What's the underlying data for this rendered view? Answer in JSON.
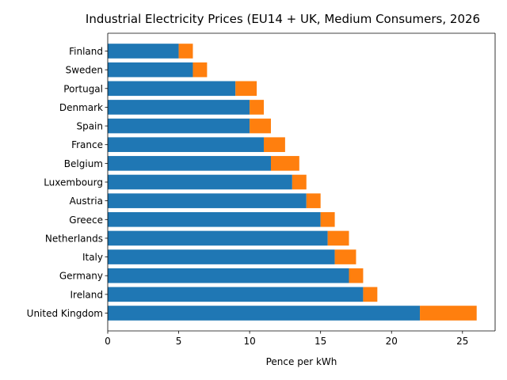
{
  "chart_data": {
    "type": "bar",
    "orientation": "horizontal",
    "stacked": true,
    "title": "Industrial Electricity Prices (EU14 + UK, Medium Consumers, 2026",
    "xlabel": "Pence per kWh",
    "ylabel": "",
    "xlim": [
      0,
      27.3
    ],
    "xticks": [
      0,
      5,
      10,
      15,
      20,
      25
    ],
    "grid": false,
    "legend": "none",
    "categories": [
      "Finland",
      "Sweden",
      "Portugal",
      "Denmark",
      "Spain",
      "France",
      "Belgium",
      "Luxembourg",
      "Austria",
      "Greece",
      "Netherlands",
      "Italy",
      "Germany",
      "Ireland",
      "United Kingdom"
    ],
    "series": [
      {
        "color": "#1f77b4",
        "values": [
          5,
          6,
          9,
          10,
          10,
          11,
          11.5,
          13,
          14,
          15,
          15.5,
          16,
          17,
          18,
          22
        ]
      },
      {
        "color": "#ff7f0e",
        "values": [
          1,
          1,
          1.5,
          1,
          1.5,
          1.5,
          2,
          1,
          1,
          1,
          1.5,
          1.5,
          1,
          1,
          4
        ]
      }
    ]
  }
}
